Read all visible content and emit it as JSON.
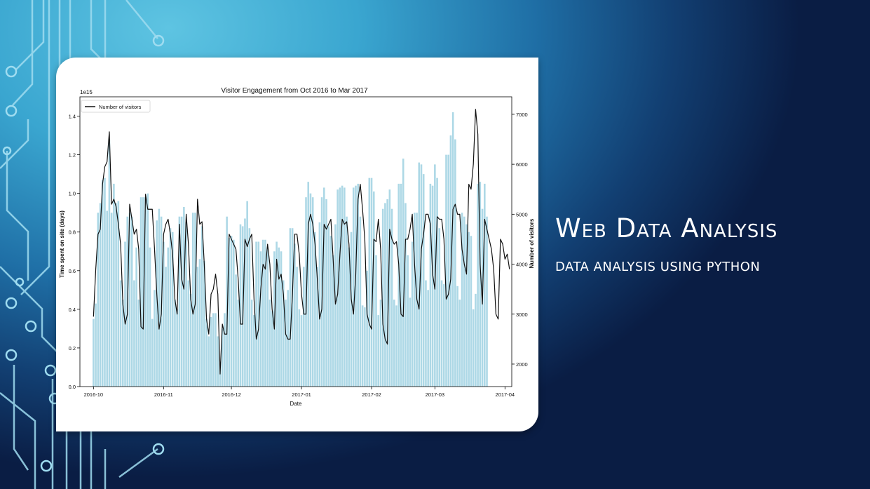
{
  "slide": {
    "title": "Web Data Analysis",
    "subtitle": "DATA ANALYSIS USING PYTHON",
    "colors": {
      "bg_light": "#5ec4e2",
      "bg_dark": "#0a1d44",
      "circuit": "#8fd6ee"
    }
  },
  "chart_data": {
    "type": "bar",
    "title": "Visitor Engagement from Oct 2016 to Mar 2017",
    "xlabel": "Date",
    "ylabel": "Time spent on site (days)",
    "y2label": "Number of visitors",
    "y_offset_text": "1e15",
    "xlim": [
      "2016-09-25",
      "2017-04-04"
    ],
    "ylim": [
      0,
      1.5
    ],
    "y2lim": [
      1550,
      7350
    ],
    "x_ticks": [
      "2016-10",
      "2016-11",
      "2016-12",
      "2017-01",
      "2017-02",
      "2017-03",
      "2017-04"
    ],
    "x_tick_dates": [
      "2016-10-01",
      "2016-11-01",
      "2016-12-01",
      "2017-01-01",
      "2017-02-01",
      "2017-03-01",
      "2017-04-01"
    ],
    "y_ticks": [
      "0.0",
      "0.2",
      "0.4",
      "0.6",
      "0.8",
      "1.0",
      "1.2",
      "1.4"
    ],
    "y2_ticks": [
      "2000",
      "3000",
      "4000",
      "5000",
      "6000",
      "7000"
    ],
    "legend": {
      "position": "top-left",
      "entries": [
        "Number of visitors"
      ]
    },
    "bar_color": "#add8e6",
    "line_color": "#111111",
    "start_date": "2016-10-01",
    "series": [
      {
        "name": "Time spent on site (days)",
        "axis": "left",
        "kind": "bar",
        "values": [
          0.35,
          0.43,
          0.9,
          0.95,
          1.07,
          1.08,
          0.91,
          1.28,
          0.9,
          1.05,
          0.95,
          0.96,
          0.55,
          0.45,
          0.75,
          0.88,
          0.9,
          0.88,
          0.55,
          0.72,
          0.45,
          0.98,
          0.98,
          0.98,
          1.0,
          0.72,
          0.35,
          0.5,
          0.86,
          0.92,
          0.88,
          0.75,
          0.62,
          0.72,
          0.82,
          0.8,
          0.45,
          0.4,
          0.88,
          0.88,
          0.93,
          0.85,
          0.55,
          0.48,
          0.9,
          0.9,
          0.62,
          0.66,
          0.83,
          0.65,
          0.35,
          0.26,
          0.36,
          0.38,
          0.38,
          0.26,
          0.12,
          0.3,
          0.38,
          0.88,
          0.77,
          0.78,
          0.76,
          0.58,
          0.45,
          0.84,
          0.83,
          0.87,
          0.96,
          0.82,
          0.45,
          0.37,
          0.75,
          0.75,
          0.7,
          0.76,
          0.76,
          0.72,
          0.45,
          0.39,
          0.7,
          0.75,
          0.72,
          0.7,
          0.55,
          0.45,
          0.5,
          0.82,
          0.82,
          0.74,
          0.62,
          0.4,
          0.37,
          0.62,
          0.98,
          1.06,
          1.0,
          0.98,
          0.8,
          0.62,
          0.85,
          0.98,
          1.03,
          0.97,
          0.83,
          0.78,
          0.68,
          0.84,
          1.02,
          1.03,
          1.04,
          1.03,
          0.88,
          0.72,
          0.8,
          1.03,
          1.04,
          1.05,
          0.88,
          0.42,
          0.41,
          0.6,
          1.08,
          1.08,
          1.01,
          0.68,
          0.37,
          0.45,
          0.92,
          0.95,
          0.97,
          1.02,
          0.92,
          0.45,
          0.42,
          1.05,
          1.05,
          1.18,
          0.95,
          0.68,
          0.46,
          0.75,
          0.9,
          0.9,
          1.16,
          1.15,
          1.1,
          0.55,
          0.5,
          1.05,
          1.04,
          1.15,
          1.08,
          0.82,
          0.55,
          0.53,
          1.2,
          1.2,
          1.3,
          1.42,
          1.28,
          0.52,
          0.45,
          0.9,
          0.88,
          0.84,
          0.8,
          0.78,
          0.4,
          0.48,
          1.05,
          1.06,
          0.92,
          1.05,
          0.88
        ],
        "color": "#add8e6"
      },
      {
        "name": "Number of visitors",
        "axis": "right",
        "kind": "line",
        "values": [
          2950,
          3900,
          4600,
          4700,
          5600,
          5950,
          6050,
          6650,
          5200,
          5300,
          5150,
          4800,
          4400,
          3200,
          2800,
          3000,
          5200,
          4900,
          4600,
          4700,
          4300,
          2750,
          2700,
          5400,
          5100,
          5100,
          5100,
          4300,
          3400,
          2700,
          3000,
          4600,
          4800,
          4900,
          4600,
          4200,
          3300,
          3000,
          4800,
          3700,
          3500,
          5000,
          4400,
          3300,
          3000,
          3200,
          5300,
          4800,
          4850,
          4000,
          2900,
          2600,
          3400,
          3500,
          3800,
          3400,
          1800,
          2800,
          2600,
          2600,
          4600,
          4500,
          4400,
          4300,
          3700,
          2800,
          2800,
          4500,
          4350,
          4500,
          4600,
          3300,
          2500,
          2700,
          3500,
          4000,
          3900,
          4400,
          4000,
          3100,
          2700,
          4100,
          3700,
          3800,
          3400,
          2600,
          2500,
          2500,
          3400,
          4600,
          4600,
          4200,
          3400,
          3000,
          3000,
          4800,
          5000,
          4800,
          4400,
          3700,
          2900,
          3100,
          4800,
          4700,
          4800,
          4900,
          4100,
          3200,
          3400,
          4200,
          4900,
          4800,
          4850,
          4400,
          3300,
          3000,
          3800,
          5300,
          5600,
          5100,
          4500,
          3000,
          2800,
          2700,
          4500,
          4450,
          4900,
          4300,
          2800,
          2500,
          2400,
          4700,
          4500,
          4400,
          4450,
          4000,
          3000,
          2950,
          4500,
          4500,
          4700,
          5000,
          4000,
          3300,
          3100,
          4300,
          4600,
          5000,
          5000,
          4800,
          3800,
          3500,
          4950,
          4900,
          4900,
          4500,
          3300,
          3400,
          3700,
          5100,
          5200,
          5000,
          5000,
          4300,
          4000,
          3800,
          5600,
          5500,
          6000,
          7100,
          6600,
          4000,
          3200,
          4900,
          4700,
          4500,
          4300,
          3900,
          3000,
          2900,
          4500,
          4400,
          4100,
          4200,
          3900
        ],
        "color": "#111111"
      }
    ]
  }
}
